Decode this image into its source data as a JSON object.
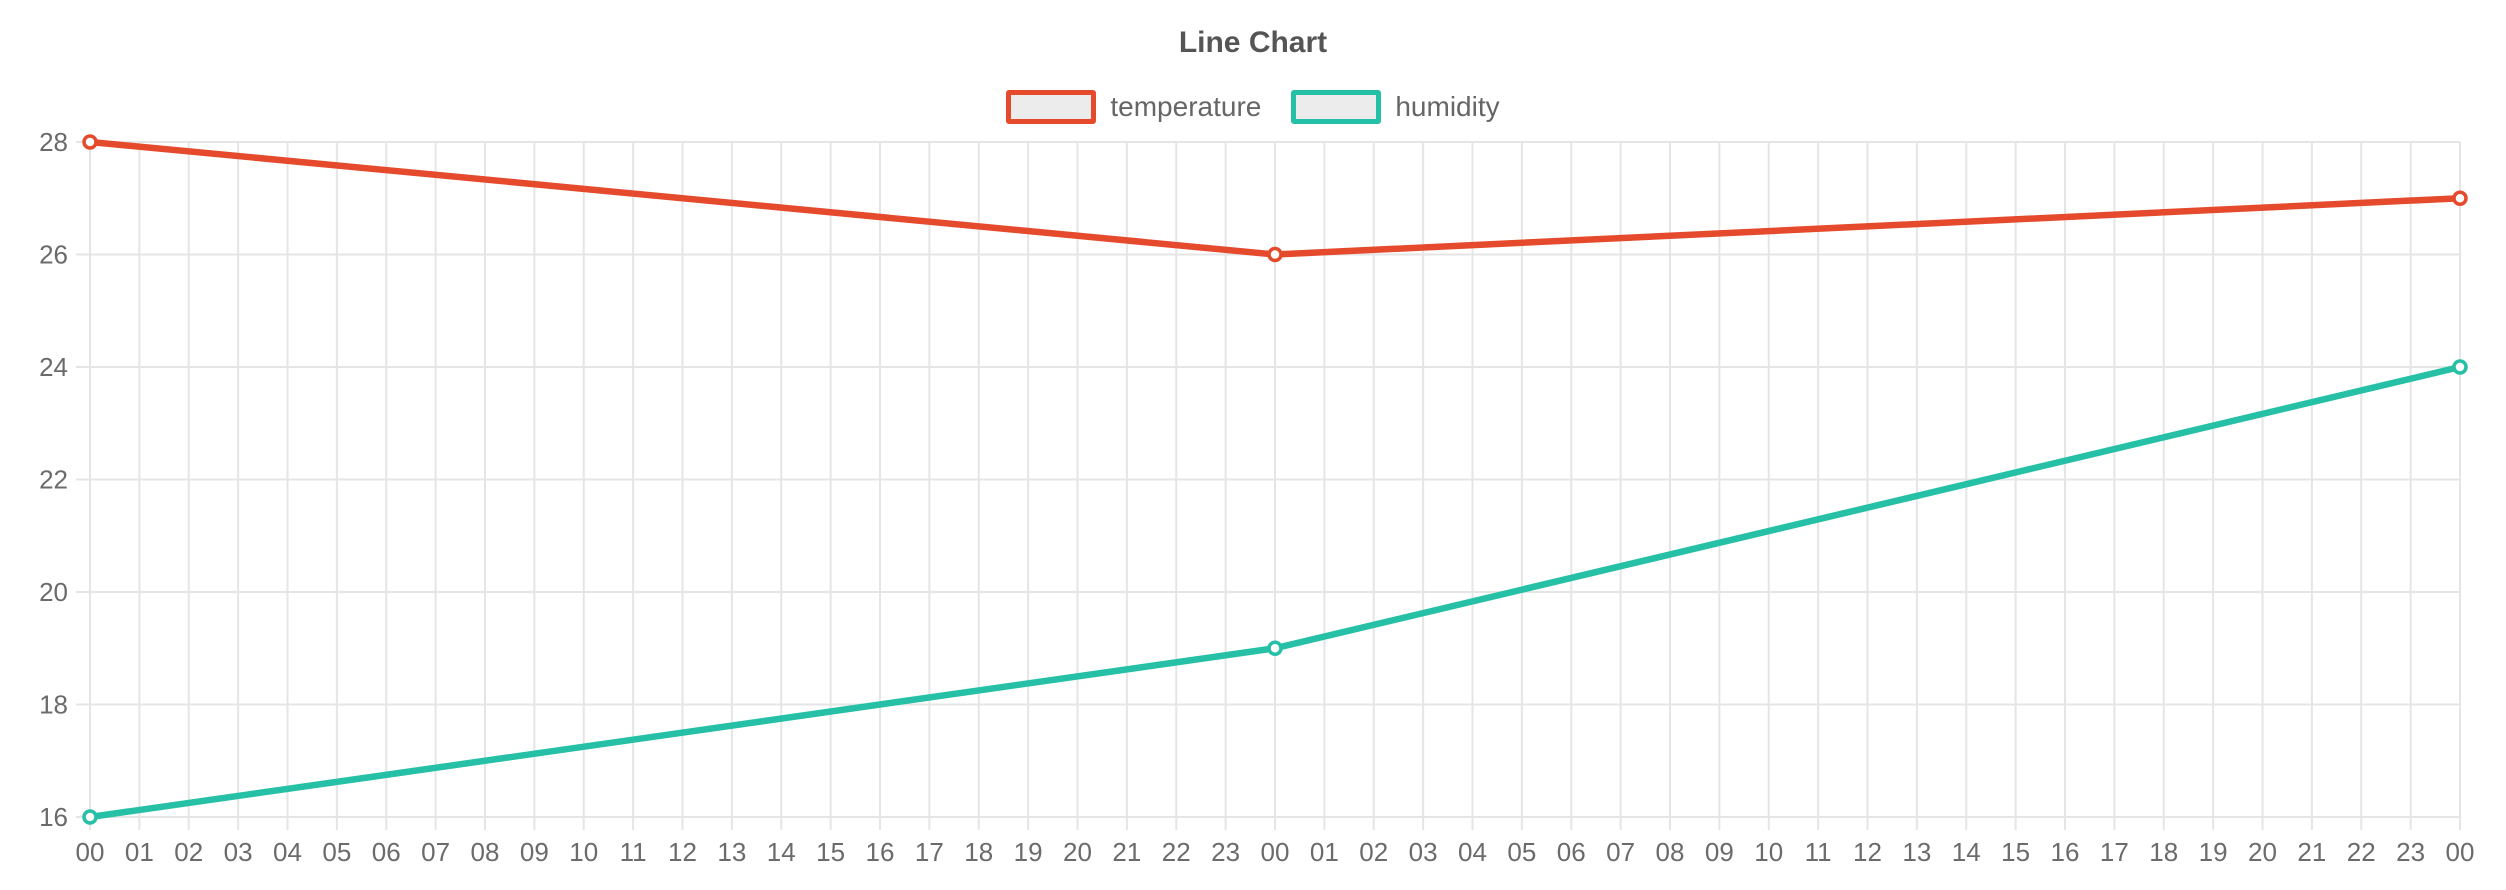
{
  "chart_data": {
    "type": "line",
    "title": "Line Chart",
    "xlabel": "",
    "ylabel": "",
    "x_categories": [
      "00",
      "01",
      "02",
      "03",
      "04",
      "05",
      "06",
      "07",
      "08",
      "09",
      "10",
      "11",
      "12",
      "13",
      "14",
      "15",
      "16",
      "17",
      "18",
      "19",
      "20",
      "21",
      "22",
      "23",
      "00",
      "01",
      "02",
      "03",
      "04",
      "05",
      "06",
      "07",
      "08",
      "09",
      "10",
      "11",
      "12",
      "13",
      "14",
      "15",
      "16",
      "17",
      "18",
      "19",
      "20",
      "21",
      "22",
      "23",
      "00"
    ],
    "y_ticks": [
      16,
      18,
      20,
      22,
      24,
      26,
      28
    ],
    "ylim": [
      16,
      28
    ],
    "grid": true,
    "legend_position": "top",
    "series": [
      {
        "name": "temperature",
        "color": "#e54a2d",
        "point_indices": [
          0,
          24,
          48
        ],
        "point_labels": [
          "00",
          "00",
          "00"
        ],
        "values": [
          28,
          26,
          27
        ]
      },
      {
        "name": "humidity",
        "color": "#25c0a6",
        "point_indices": [
          0,
          24,
          48
        ],
        "point_labels": [
          "00",
          "00",
          "00"
        ],
        "values": [
          16,
          19,
          24
        ]
      }
    ],
    "colors": {
      "grid": "#e5e5e5",
      "tick_text": "#6b6b6b",
      "title_text": "#555555",
      "legend_text": "#666666",
      "legend_swatch_fill": "#ececec",
      "point_fill": "#ffffff",
      "background": "#ffffff"
    },
    "marker_style": "open-circle"
  }
}
